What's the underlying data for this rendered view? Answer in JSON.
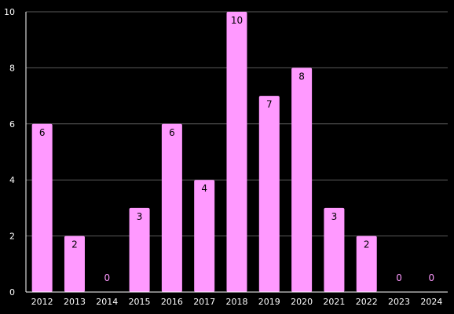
{
  "chart_data": {
    "type": "bar",
    "categories": [
      "2012",
      "2013",
      "2014",
      "2015",
      "2016",
      "2017",
      "2018",
      "2019",
      "2020",
      "2021",
      "2022",
      "2023",
      "2024"
    ],
    "values": [
      6,
      2,
      0,
      3,
      6,
      4,
      10,
      7,
      8,
      3,
      2,
      0,
      0
    ],
    "title": "",
    "xlabel": "",
    "ylabel": "",
    "ylim": [
      0,
      10
    ],
    "yticks": [
      0,
      2,
      4,
      6,
      8,
      10
    ],
    "grid": true,
    "legend": "none"
  },
  "colors": {
    "background": "#000000",
    "bar": "#ff99ff",
    "bar_label": "#000000",
    "zero_label": "#ff99ff",
    "grid": "#5a5a5a",
    "axis": "#ffffff",
    "text": "#ffffff"
  }
}
